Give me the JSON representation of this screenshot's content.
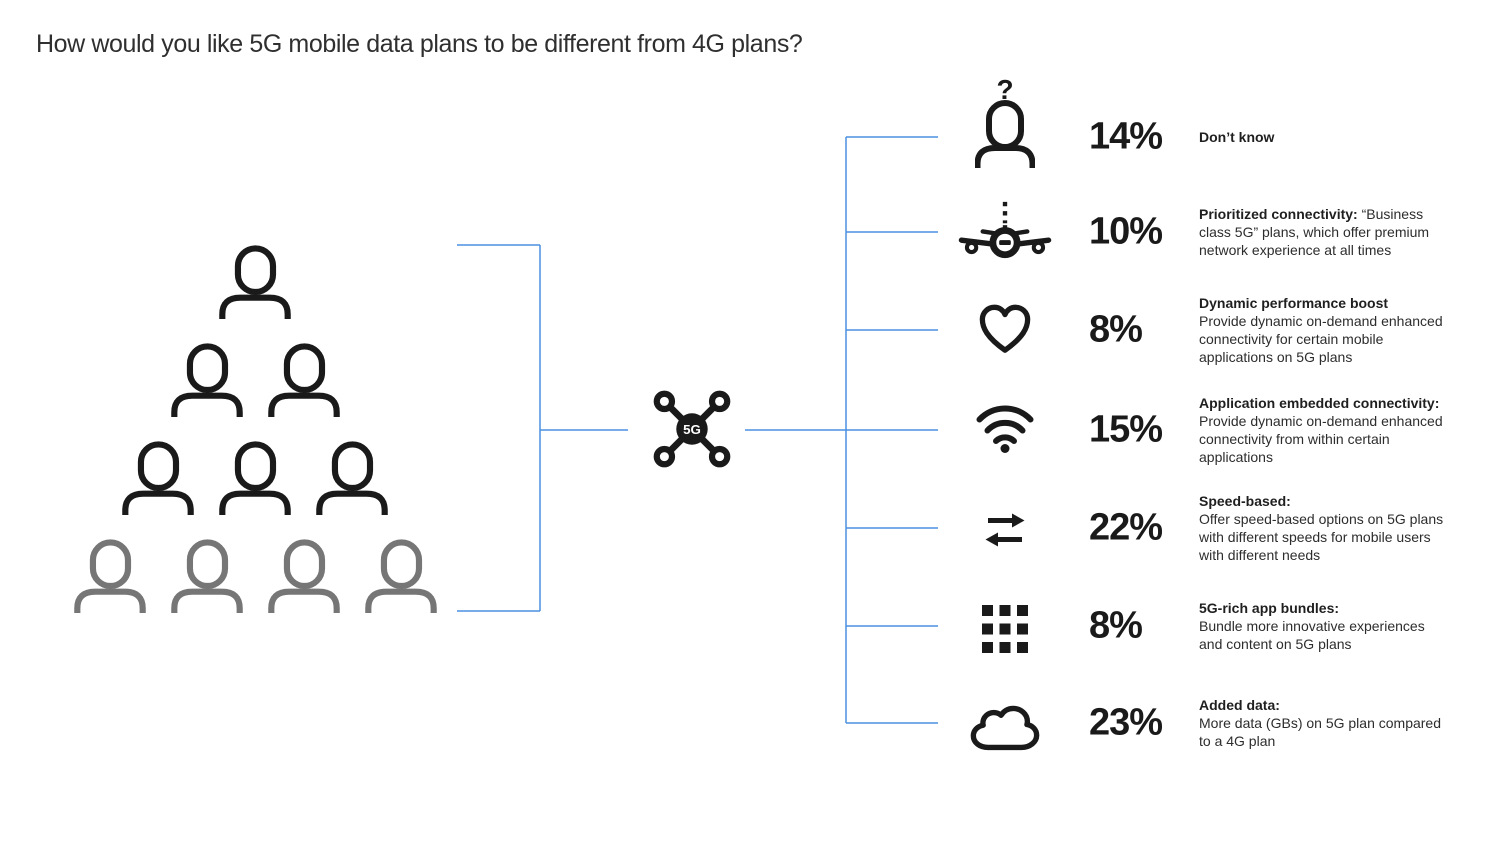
{
  "title": "How would you like 5G mobile data plans to be different from 4G plans?",
  "hub": {
    "label": "5G"
  },
  "audience": {
    "rows": [
      {
        "count": 1,
        "color": "#1a1a1a"
      },
      {
        "count": 2,
        "color": "#1a1a1a"
      },
      {
        "count": 3,
        "color": "#1a1a1a"
      },
      {
        "count": 4,
        "color": "#767676"
      }
    ]
  },
  "items": [
    {
      "icon": "person-question-icon",
      "pct": "14%",
      "heading": "Don’t know",
      "body": "",
      "inline": true
    },
    {
      "icon": "airplane-icon",
      "pct": "10%",
      "heading": "Prioritized connectivity:",
      "body": "“Business class 5G” plans, which offer premium network experience at all times",
      "inline": true
    },
    {
      "icon": "heart-icon",
      "pct": "8%",
      "heading": "Dynamic performance boost",
      "body": "Provide dynamic on-demand enhanced connectivity for certain mobile applications on 5G plans",
      "inline": false
    },
    {
      "icon": "wifi-icon",
      "pct": "15%",
      "heading": "Application embedded connectivity:",
      "body": "Provide dynamic on-demand enhanced connectivity from within certain applications",
      "inline": false
    },
    {
      "icon": "transfer-arrows-icon",
      "pct": "22%",
      "heading": "Speed-based:",
      "body": "Offer speed-based options on 5G plans with different speeds for mobile users with different needs",
      "inline": false
    },
    {
      "icon": "app-grid-icon",
      "pct": "8%",
      "heading": "5G-rich app bundles:",
      "body": "Bundle more innovative experiences and content on 5G plans",
      "inline": false
    },
    {
      "icon": "cloud-icon",
      "pct": "23%",
      "heading": "Added data:",
      "body": "More data (GBs) on 5G plan compared to a 4G plan",
      "inline": false
    }
  ],
  "colors": {
    "accent_blue": "#4a90e2",
    "ink": "#1a1a1a",
    "muted_person": "#767676"
  },
  "chart_data": {
    "type": "table",
    "title": "How would you like 5G mobile data plans to be different from 4G plans?",
    "categories": [
      "Don’t know",
      "Prioritized connectivity: “Business class 5G” plans, which offer premium network experience at all times",
      "Dynamic performance boost: Provide dynamic on-demand enhanced connectivity for certain mobile applications on 5G plans",
      "Application embedded connectivity: Provide dynamic on-demand enhanced connectivity from within certain applications",
      "Speed-based: Offer speed-based options on 5G plans with different speeds for mobile users with different needs",
      "5G-rich app bundles: Bundle more innovative experiences and content on 5G plans",
      "Added data: More data (GBs) on 5G plan compared to a 4G plan"
    ],
    "values": [
      14,
      10,
      8,
      15,
      22,
      8,
      23
    ],
    "unit": "%",
    "layout": "mind-map infographic: audience pyramid → 5G hub → seven icon branches"
  }
}
